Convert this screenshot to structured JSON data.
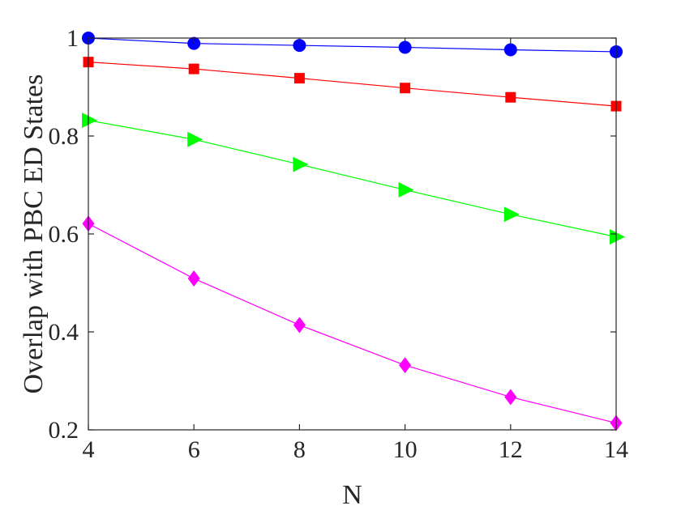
{
  "chart_data": {
    "type": "line",
    "xlabel": "N",
    "ylabel": "Overlap with PBC ED States",
    "xlim": [
      4,
      14
    ],
    "ylim": [
      0.2,
      1.0
    ],
    "xticks": [
      "4",
      "6",
      "8",
      "10",
      "12",
      "14"
    ],
    "yticks": [
      "0.2",
      "0.4",
      "0.6",
      "0.8",
      "1"
    ],
    "x": [
      4,
      6,
      8,
      10,
      12,
      14
    ],
    "series": [
      {
        "values": [
          1.0,
          0.989,
          0.985,
          0.981,
          0.976,
          0.972
        ],
        "color": "#0000ff",
        "marker": "circle"
      },
      {
        "values": [
          0.951,
          0.937,
          0.918,
          0.898,
          0.879,
          0.861
        ],
        "color": "#ff0000",
        "marker": "square"
      },
      {
        "values": [
          0.832,
          0.793,
          0.742,
          0.69,
          0.64,
          0.594
        ],
        "color": "#00ff00",
        "marker": "triangle-right"
      },
      {
        "values": [
          0.621,
          0.509,
          0.414,
          0.332,
          0.267,
          0.214
        ],
        "color": "#ff00ff",
        "marker": "diamond"
      }
    ],
    "grid": false,
    "legend": "none"
  }
}
